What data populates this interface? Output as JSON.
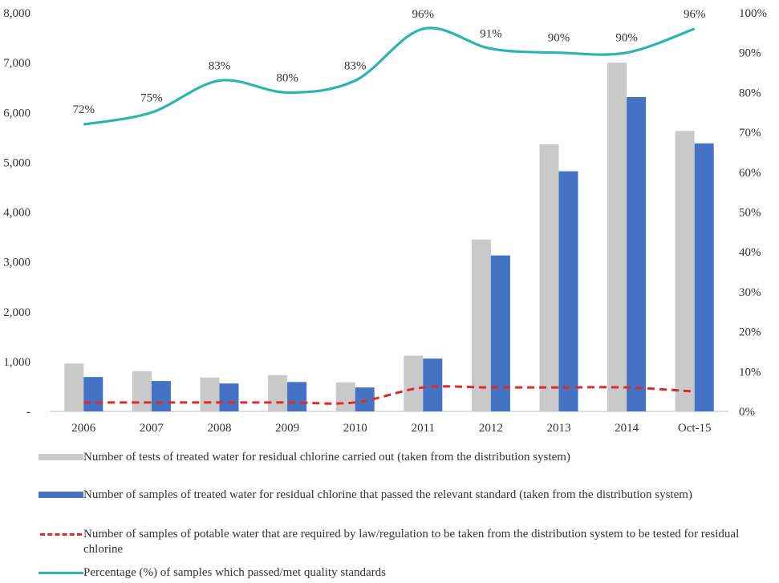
{
  "chart_data": {
    "type": "bar",
    "title": "",
    "categories": [
      "2006",
      "2007",
      "2008",
      "2009",
      "2010",
      "2011",
      "2012",
      "2013",
      "2014",
      "Oct-15"
    ],
    "y_left": {
      "range": [
        0,
        8000
      ],
      "ticks": [
        "-",
        "1,000",
        "2,000",
        "3,000",
        "4,000",
        "5,000",
        "6,000",
        "7,000",
        "8,000"
      ]
    },
    "y_right": {
      "range": [
        0,
        100
      ],
      "ticks": [
        "0%",
        "10%",
        "20%",
        "30%",
        "40%",
        "50%",
        "60%",
        "70%",
        "80%",
        "90%",
        "100%"
      ]
    },
    "grid": false,
    "legend_position": "bottom",
    "series": [
      {
        "name": "Number of tests of treated water for residual chlorine carried out (taken from the distribution system)",
        "kind": "bar",
        "axis": "left",
        "color": "#c9c9c9",
        "values": [
          960,
          810,
          680,
          730,
          580,
          1120,
          3450,
          5360,
          7000,
          5630
        ]
      },
      {
        "name": "Number of samples of treated water for residual chlorine that passed the relevant standard (taken from the distribution system)",
        "kind": "bar",
        "axis": "left",
        "color": "#4472c4",
        "values": [
          690,
          610,
          560,
          590,
          480,
          1060,
          3130,
          4820,
          6310,
          5380
        ]
      },
      {
        "name": "Number of samples of potable water that are required by law/regulation to be taken from the distribution system to be tested for residual chlorine",
        "kind": "dashed-line",
        "axis": "left",
        "color": "#e02a2a",
        "values": [
          180,
          180,
          180,
          180,
          180,
          480,
          480,
          480,
          480,
          400
        ]
      },
      {
        "name": "Percentage (%) of samples which passed/met quality standards",
        "kind": "line",
        "axis": "right",
        "color": "#2ab5b0",
        "values": [
          72,
          75,
          83,
          80,
          83,
          96,
          91,
          90,
          90,
          96
        ],
        "labels": [
          "72%",
          "75%",
          "83%",
          "80%",
          "83%",
          "96%",
          "91%",
          "90%",
          "90%",
          "96%"
        ]
      }
    ]
  },
  "legend": [
    {
      "label": "Number of tests of treated water for residual chlorine carried out (taken from the distribution system)",
      "icon": "bar-swatch"
    },
    {
      "label": "Number of samples of treated water for residual chlorine that passed the relevant standard (taken from the distribution system)",
      "icon": "bar-swatch"
    },
    {
      "label": "Number of samples of potable water that are required by law/regulation to be taken from the distribution system to be tested for residual chlorine",
      "icon": "dashed-line-swatch"
    },
    {
      "label": "Percentage (%) of samples which passed/met quality standards",
      "icon": "line-swatch"
    }
  ]
}
